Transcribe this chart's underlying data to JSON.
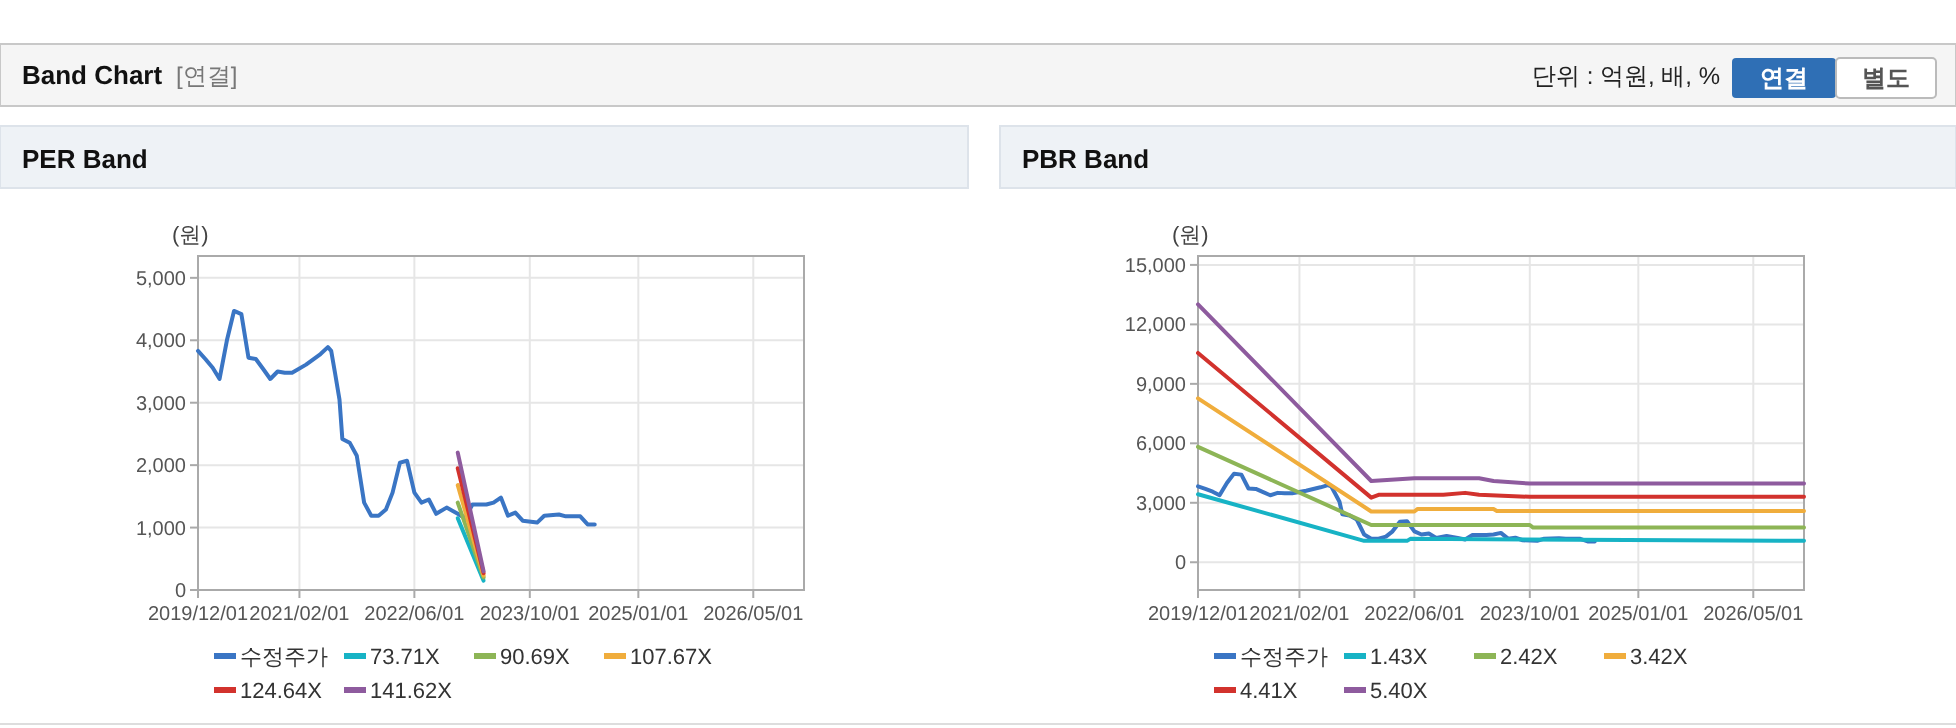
{
  "chart_data": [
    {
      "type": "other",
      "title": "Band Chart",
      "annotations": [
        "[연결]",
        "단위 : 억원, 배, %",
        "연결",
        "별도"
      ]
    },
    {
      "type": "line",
      "title": "PER Band",
      "ylabel": "(원)",
      "grid": true,
      "legend": "bottom",
      "xlim": [
        "2019-12-01",
        "2026-12-01"
      ],
      "ylim": [
        0,
        5350
      ],
      "xticks": [
        {
          "value": "2019-12-01",
          "label": "2019/12/01"
        },
        {
          "value": "2021-02-01",
          "label": "2021/02/01"
        },
        {
          "value": "2022-06-01",
          "label": "2022/06/01"
        },
        {
          "value": "2023-10-01",
          "label": "2023/10/01"
        },
        {
          "value": "2025-01-01",
          "label": "2025/01/01"
        },
        {
          "value": "2026-05-01",
          "label": "2026/05/01"
        }
      ],
      "yticks": [
        0,
        {
          "value": 1000,
          "label": "1,000"
        },
        {
          "value": 2000,
          "label": "2,000"
        },
        {
          "value": 3000,
          "label": "3,000"
        },
        {
          "value": 4000,
          "label": "4,000"
        },
        {
          "value": 5000,
          "label": "5,000"
        }
      ],
      "series": [
        {
          "name": "수정주가",
          "color": "#3a75c4",
          "x": [
            "2019-12",
            "2020-01",
            "2020-02",
            "2020-03",
            "2020-04",
            "2020-05",
            "2020-06",
            "2020-07",
            "2020-08",
            "2020-09",
            "2020-10",
            "2020-11",
            "2020-12",
            "2021-01",
            "2021-03",
            "2021-05",
            "2021-06",
            "2021-06-15",
            "2021-07",
            "2021-07-20",
            "2021-08",
            "2021-09",
            "2021-10",
            "2021-11",
            "2021-12",
            "2022-01",
            "2022-02",
            "2022-03",
            "2022-04",
            "2022-05",
            "2022-06",
            "2022-07",
            "2022-08",
            "2022-09",
            "2022-10-15",
            "2022-12",
            "2023-01",
            "2023-02",
            "2023-04",
            "2023-05",
            "2023-06",
            "2023-07",
            "2023-08",
            "2023-09",
            "2023-11",
            "2023-12",
            "2024-02",
            "2024-03",
            "2024-05",
            "2024-06",
            "2024-07"
          ],
          "values": [
            3830,
            3700,
            3560,
            3380,
            4000,
            4470,
            4420,
            3720,
            3700,
            3540,
            3380,
            3500,
            3480,
            3480,
            3610,
            3780,
            3890,
            3830,
            3480,
            3050,
            2420,
            2360,
            2150,
            1400,
            1190,
            1190,
            1290,
            1560,
            2040,
            2070,
            1560,
            1400,
            1450,
            1220,
            1320,
            1220,
            1150,
            1370,
            1370,
            1400,
            1480,
            1190,
            1240,
            1110,
            1080,
            1190,
            1210,
            1180,
            1180,
            1050,
            1050
          ]
        },
        {
          "name": "73.71X",
          "color": "#17b3c5",
          "x": [
            "2022-12",
            "2023-03-20"
          ],
          "values": [
            1150,
            150
          ]
        },
        {
          "name": "90.69X",
          "color": "#8db556",
          "x": [
            "2022-12",
            "2023-03-20"
          ],
          "values": [
            1400,
            200
          ]
        },
        {
          "name": "107.67X",
          "color": "#f0ad3c",
          "x": [
            "2022-12",
            "2023-03-20"
          ],
          "values": [
            1680,
            230
          ]
        },
        {
          "name": "124.64X",
          "color": "#d2322d",
          "x": [
            "2022-12",
            "2023-03-20"
          ],
          "values": [
            1950,
            270
          ]
        },
        {
          "name": "141.62X",
          "color": "#8e5b9e",
          "x": [
            "2022-12",
            "2023-03-20"
          ],
          "values": [
            2200,
            300
          ]
        }
      ]
    },
    {
      "type": "line",
      "title": "PBR Band",
      "ylabel": "(원)",
      "grid": true,
      "legend": "bottom",
      "xlim": [
        "2019-12-01",
        "2026-12-01"
      ],
      "ylim": [
        -1400,
        15450
      ],
      "xticks": [
        {
          "value": "2019-12-01",
          "label": "2019/12/01"
        },
        {
          "value": "2021-02-01",
          "label": "2021/02/01"
        },
        {
          "value": "2022-06-01",
          "label": "2022/06/01"
        },
        {
          "value": "2023-10-01",
          "label": "2023/10/01"
        },
        {
          "value": "2025-01-01",
          "label": "2025/01/01"
        },
        {
          "value": "2026-05-01",
          "label": "2026/05/01"
        }
      ],
      "yticks": [
        0,
        {
          "value": 3000,
          "label": "3,000"
        },
        {
          "value": 6000,
          "label": "6,000"
        },
        {
          "value": 9000,
          "label": "9,000"
        },
        {
          "value": 12000,
          "label": "12,000"
        },
        {
          "value": 15000,
          "label": "15,000"
        }
      ],
      "series": [
        {
          "name": "수정주가",
          "color": "#3a75c4",
          "x": [
            "2019-12",
            "2020-01",
            "2020-02",
            "2020-03",
            "2020-04",
            "2020-05",
            "2020-06",
            "2020-07",
            "2020-08",
            "2020-09",
            "2020-10",
            "2020-11",
            "2020-12",
            "2021-01",
            "2021-03",
            "2021-05",
            "2021-06",
            "2021-06-15",
            "2021-07",
            "2021-07-20",
            "2021-08",
            "2021-09",
            "2021-10",
            "2021-11",
            "2021-12",
            "2022-01",
            "2022-02",
            "2022-03",
            "2022-04",
            "2022-05",
            "2022-06",
            "2022-07",
            "2022-08",
            "2022-09",
            "2022-10-15",
            "2022-12",
            "2023-01",
            "2023-02",
            "2023-04",
            "2023-05",
            "2023-06",
            "2023-07",
            "2023-08",
            "2023-09",
            "2023-11",
            "2023-12",
            "2024-02",
            "2024-03",
            "2024-05",
            "2024-06",
            "2024-07"
          ],
          "values": [
            3830,
            3700,
            3560,
            3380,
            4000,
            4470,
            4420,
            3720,
            3700,
            3540,
            3380,
            3500,
            3480,
            3480,
            3610,
            3780,
            3890,
            3830,
            3480,
            3050,
            2420,
            2360,
            2150,
            1400,
            1190,
            1190,
            1290,
            1560,
            2040,
            2070,
            1560,
            1400,
            1450,
            1220,
            1320,
            1220,
            1150,
            1370,
            1370,
            1400,
            1480,
            1190,
            1240,
            1110,
            1080,
            1190,
            1210,
            1180,
            1180,
            1050,
            1050
          ]
        },
        {
          "name": "1.43X",
          "color": "#17b3c5",
          "x": [
            "2019-12",
            "2021-11",
            "2022-05",
            "2022-05-15",
            "2026-12"
          ],
          "values": [
            3430,
            1080,
            1080,
            1180,
            1080
          ]
        },
        {
          "name": "2.42X",
          "color": "#8db556",
          "x": [
            "2019-12",
            "2021-12",
            "2023-10",
            "2023-10-15",
            "2026-12"
          ],
          "values": [
            5820,
            1880,
            1880,
            1750,
            1750
          ]
        },
        {
          "name": "3.42X",
          "color": "#f0ad3c",
          "x": [
            "2019-12",
            "2021-12",
            "2022-06",
            "2022-06-15",
            "2023-05",
            "2023-05-15",
            "2026-12"
          ],
          "values": [
            8270,
            2560,
            2560,
            2690,
            2690,
            2590,
            2590
          ]
        },
        {
          "name": "4.41X",
          "color": "#d2322d",
          "x": [
            "2019-12",
            "2021-12",
            "2022-01",
            "2022-10",
            "2023-01",
            "2023-03",
            "2023-10",
            "2026-12"
          ],
          "values": [
            10560,
            3260,
            3400,
            3400,
            3500,
            3400,
            3300,
            3300
          ]
        },
        {
          "name": "5.40X",
          "color": "#8e5b9e",
          "x": [
            "2019-12",
            "2021-12",
            "2022-06",
            "2023-03",
            "2023-05",
            "2023-10",
            "2026-12"
          ],
          "values": [
            13010,
            4100,
            4240,
            4240,
            4100,
            3970,
            3970
          ]
        }
      ]
    }
  ]
}
